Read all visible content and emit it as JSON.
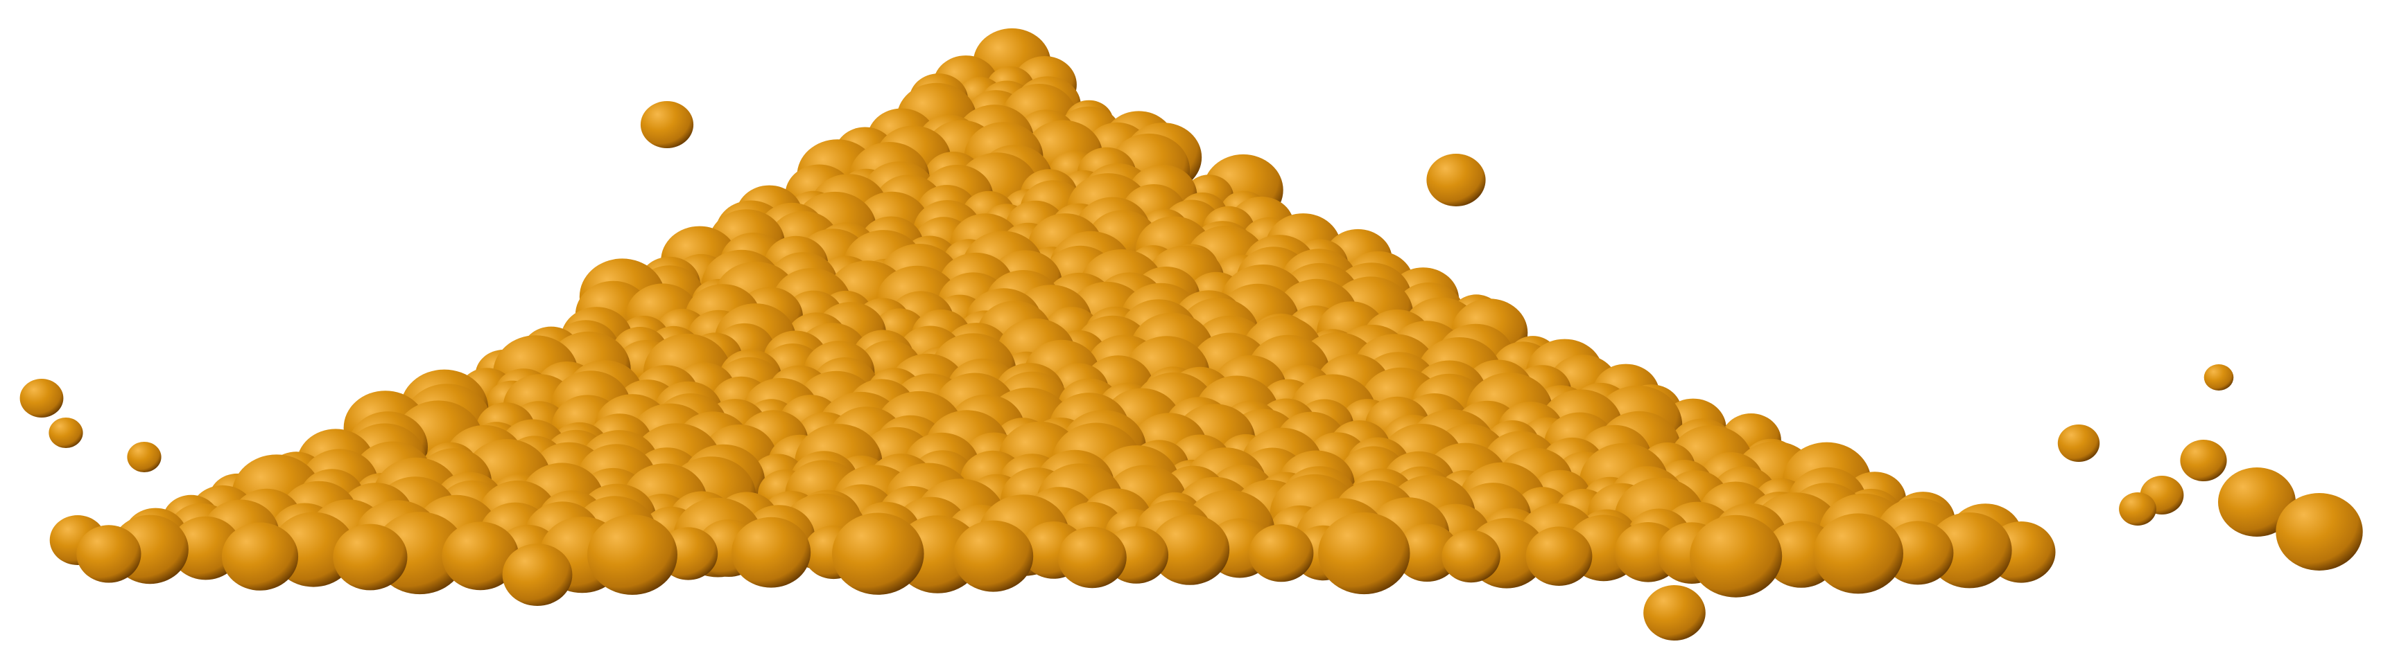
{
  "scene": {
    "subject": "granular-pile-of-spheres",
    "colors": {
      "background": "#ffffff",
      "sphere_highlight": "#f6b84a",
      "sphere_base": "#d9900f",
      "sphere_mid": "#b8740a",
      "sphere_shadow": "#6b3d02"
    }
  }
}
